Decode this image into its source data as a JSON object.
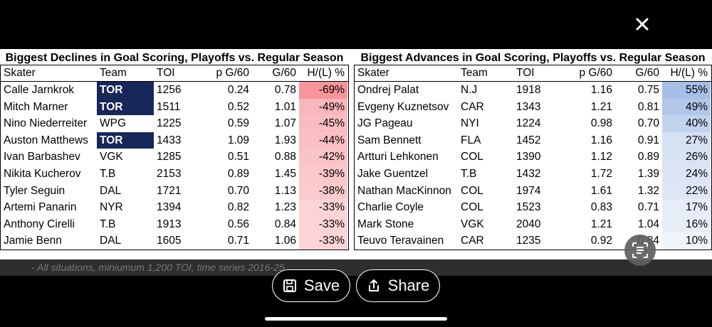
{
  "close_icon": "close-icon",
  "left_table": {
    "title": "Biggest Declines in Goal Scoring, Playoffs vs. Regular Season",
    "headers": [
      "Skater",
      "Team",
      "TOI",
      "p G/60",
      "G/60",
      "H/(L) %"
    ],
    "rows": [
      {
        "skater": "Calle Jarnkrok",
        "team": "TOR",
        "toi": "1256",
        "pg60": "0.24",
        "g60": "0.78",
        "hl": "-69%",
        "highlight": true,
        "shade": "#f7959b"
      },
      {
        "skater": "Mitch Marner",
        "team": "TOR",
        "toi": "1511",
        "pg60": "0.52",
        "g60": "1.01",
        "hl": "-49%",
        "highlight": true,
        "shade": "#f8b7bb"
      },
      {
        "skater": "Nino Niederreiter",
        "team": "WPG",
        "toi": "1225",
        "pg60": "0.59",
        "g60": "1.07",
        "hl": "-45%",
        "highlight": false,
        "shade": "#f9bdc1"
      },
      {
        "skater": "Auston Matthews",
        "team": "TOR",
        "toi": "1433",
        "pg60": "1.09",
        "g60": "1.93",
        "hl": "-44%",
        "highlight": true,
        "shade": "#f9bfc3"
      },
      {
        "skater": "Ivan Barbashev",
        "team": "VGK",
        "toi": "1285",
        "pg60": "0.51",
        "g60": "0.88",
        "hl": "-42%",
        "highlight": false,
        "shade": "#fac3c6"
      },
      {
        "skater": "Nikita Kucherov",
        "team": "T.B",
        "toi": "2153",
        "pg60": "0.89",
        "g60": "1.45",
        "hl": "-39%",
        "highlight": false,
        "shade": "#fac8cb"
      },
      {
        "skater": "Tyler Seguin",
        "team": "DAL",
        "toi": "1721",
        "pg60": "0.70",
        "g60": "1.13",
        "hl": "-38%",
        "highlight": false,
        "shade": "#fbcbcd"
      },
      {
        "skater": "Artemi Panarin",
        "team": "NYR",
        "toi": "1394",
        "pg60": "0.82",
        "g60": "1.23",
        "hl": "-33%",
        "highlight": false,
        "shade": "#fcd4d6"
      },
      {
        "skater": "Anthony Cirelli",
        "team": "T.B",
        "toi": "1913",
        "pg60": "0.56",
        "g60": "0.84",
        "hl": "-33%",
        "highlight": false,
        "shade": "#fcd4d6"
      },
      {
        "skater": "Jamie Benn",
        "team": "DAL",
        "toi": "1605",
        "pg60": "0.71",
        "g60": "1.06",
        "hl": "-33%",
        "highlight": false,
        "shade": "#fcd4d6"
      }
    ]
  },
  "right_table": {
    "title": "Biggest Advances in Goal Scoring, Playoffs vs. Regular Season",
    "headers": [
      "Skater",
      "Team",
      "TOI",
      "p G/60",
      "G/60",
      "H/(L) %"
    ],
    "rows": [
      {
        "skater": "Ondrej Palat",
        "team": "N.J",
        "toi": "1918",
        "pg60": "1.16",
        "g60": "0.75",
        "hl": "55%",
        "shade": "#a7bfe6"
      },
      {
        "skater": "Evgeny Kuznetsov",
        "team": "CAR",
        "toi": "1343",
        "pg60": "1.21",
        "g60": "0.81",
        "hl": "49%",
        "shade": "#b2c7e9"
      },
      {
        "skater": "JG Pageau",
        "team": "NYI",
        "toi": "1224",
        "pg60": "0.98",
        "g60": "0.70",
        "hl": "40%",
        "shade": "#c2d3ee"
      },
      {
        "skater": "Sam Bennett",
        "team": "FLA",
        "toi": "1452",
        "pg60": "1.16",
        "g60": "0.91",
        "hl": "27%",
        "shade": "#d6e1f3"
      },
      {
        "skater": "Artturi Lehkonen",
        "team": "COL",
        "toi": "1390",
        "pg60": "1.12",
        "g60": "0.89",
        "hl": "26%",
        "shade": "#d8e3f4"
      },
      {
        "skater": "Jake Guentzel",
        "team": "T.B",
        "toi": "1432",
        "pg60": "1.72",
        "g60": "1.39",
        "hl": "24%",
        "shade": "#dbe5f5"
      },
      {
        "skater": "Nathan MacKinnon",
        "team": "COL",
        "toi": "1974",
        "pg60": "1.61",
        "g60": "1.32",
        "hl": "22%",
        "shade": "#dee7f6"
      },
      {
        "skater": "Charlie Coyle",
        "team": "COL",
        "toi": "1523",
        "pg60": "0.83",
        "g60": "0.71",
        "hl": "17%",
        "shade": "#e6ecf8"
      },
      {
        "skater": "Mark Stone",
        "team": "VGK",
        "toi": "2040",
        "pg60": "1.21",
        "g60": "1.04",
        "hl": "16%",
        "shade": "#e8eef8"
      },
      {
        "skater": "Teuvo Teravainen",
        "team": "CAR",
        "toi": "1235",
        "pg60": "0.92",
        "g60": "0.84",
        "hl": "10%",
        "shade": "#f0f4fb"
      }
    ]
  },
  "footnote": "- All situations, miniumum 1,200 TOI, time series 2016-25",
  "toolbar": {
    "save_label": "Save",
    "share_label": "Share"
  },
  "colors": {
    "team_highlight": "#17275a",
    "background": "#000000"
  }
}
